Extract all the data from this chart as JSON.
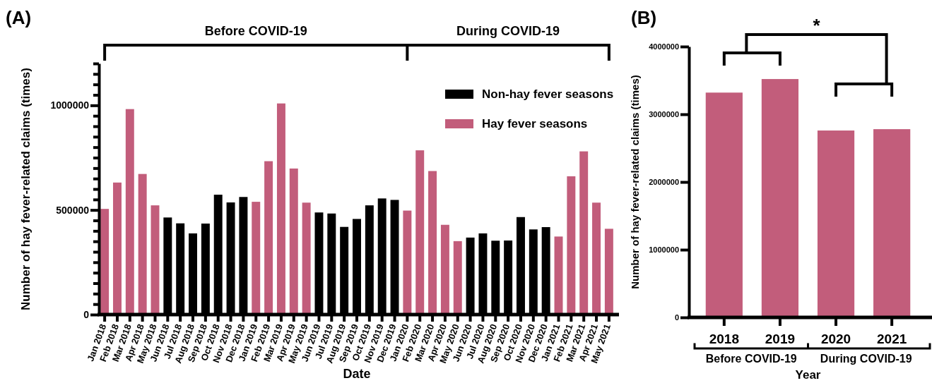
{
  "chart_data": [
    {
      "type": "bar",
      "title": "(A)",
      "xlabel": "Date",
      "ylabel": "Number of hay fever-related claims  (times)",
      "annotations": [
        "Before COVID-19",
        "During COVID-19"
      ],
      "categories": [
        "Jan 2018",
        "Feb 2018",
        "Mar 2018",
        "Apr 2018",
        "May 2018",
        "Jun 2018",
        "Jul 2018",
        "Aug 2018",
        "Sep 2018",
        "Oct 2018",
        "Nov 2018",
        "Dec 2018",
        "Jan 2019",
        "Feb 2019",
        "Mar 2019",
        "Apr 2019",
        "May 2019",
        "Jun 2019",
        "Jul 2019",
        "Aug 2019",
        "Sep 2019",
        "Oct 2019",
        "Nov 2019",
        "Dec 2019",
        "Jan 2020",
        "Feb 2020",
        "Mar 2020",
        "Apr 2020",
        "May 2020",
        "Jun 2020",
        "Jul 2020",
        "Aug 2020",
        "Sep 2020",
        "Oct 2020",
        "Nov 2020",
        "Dec 2020",
        "Jan 2021",
        "Feb 2021",
        "Mar 2021",
        "Apr 2021",
        "May 2021"
      ],
      "series": [
        {
          "name": "Non-hay fever seasons",
          "color": "#000000",
          "values": [
            null,
            null,
            null,
            null,
            null,
            464000,
            436000,
            388000,
            435000,
            573000,
            536000,
            562000,
            null,
            null,
            null,
            null,
            null,
            488000,
            483000,
            419000,
            457000,
            522000,
            555000,
            548000,
            null,
            null,
            null,
            null,
            null,
            368000,
            388000,
            353000,
            354000,
            466000,
            407000,
            418000,
            null,
            null,
            null,
            null,
            null
          ]
        },
        {
          "name": "Hay fever seasons",
          "color": "#c25d7b",
          "values": [
            505000,
            631000,
            982000,
            672000,
            522000,
            null,
            null,
            null,
            null,
            null,
            null,
            null,
            539000,
            733000,
            1009000,
            698000,
            535000,
            null,
            null,
            null,
            null,
            null,
            null,
            null,
            497000,
            785000,
            686000,
            429000,
            351000,
            null,
            null,
            null,
            null,
            null,
            null,
            null,
            373000,
            661000,
            780000,
            535000,
            410000
          ]
        }
      ],
      "ylim": [
        0,
        1200000
      ],
      "yticks": [
        0,
        {
          "value": 50000,
          "label": null
        },
        {
          "value": 100000,
          "label": null
        },
        {
          "value": 150000,
          "label": null
        },
        {
          "value": 200000,
          "label": null
        },
        {
          "value": 250000,
          "label": null
        },
        {
          "value": 300000,
          "label": null
        },
        {
          "value": 350000,
          "label": null
        },
        {
          "value": 400000,
          "label": null
        },
        {
          "value": 450000,
          "label": null
        },
        500000,
        {
          "value": 550000,
          "label": null
        },
        {
          "value": 600000,
          "label": null
        },
        {
          "value": 650000,
          "label": null
        },
        {
          "value": 700000,
          "label": null
        },
        {
          "value": 750000,
          "label": null
        },
        {
          "value": 800000,
          "label": null
        },
        {
          "value": 850000,
          "label": null
        },
        {
          "value": 900000,
          "label": null
        },
        {
          "value": 950000,
          "label": null
        },
        1000000,
        {
          "value": 1050000,
          "label": null
        },
        {
          "value": 1100000,
          "label": null
        },
        {
          "value": 1150000,
          "label": null
        },
        {
          "value": 1200000,
          "label": null
        }
      ],
      "legend": "top right",
      "grid": false
    },
    {
      "type": "bar",
      "title": "(B)",
      "xlabel": "Year",
      "ylabel": "Number of hay fever-related claims  (times)",
      "annotations": [
        "*",
        "Before COVID-19",
        "During COVID-19"
      ],
      "categories": [
        "2018",
        "2019",
        "2020",
        "2021"
      ],
      "series": [
        {
          "color": "#c25d7b",
          "values": [
            3320000,
            3520000,
            2760000,
            2780000
          ]
        }
      ],
      "ylim": [
        0,
        4000000
      ],
      "yticks": [
        0,
        1000000,
        2000000,
        3000000,
        4000000
      ],
      "legend": false,
      "grid": false
    }
  ]
}
